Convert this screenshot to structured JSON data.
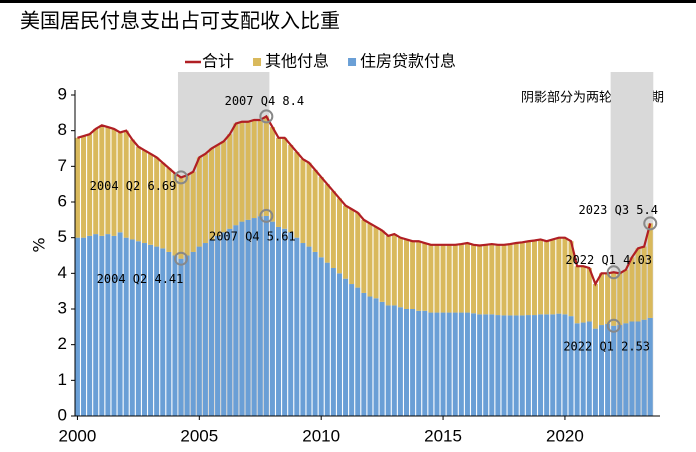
{
  "chart_data": {
    "type": "bar",
    "title": "美国居民付息支出占可支配收入比重",
    "ylabel": "%",
    "note": "阴影部分为两轮加息周期",
    "x": [
      2000,
      2000.25,
      2000.5,
      2000.75,
      2001,
      2001.25,
      2001.5,
      2001.75,
      2002,
      2002.25,
      2002.5,
      2002.75,
      2003,
      2003.25,
      2003.5,
      2003.75,
      2004,
      2004.25,
      2004.5,
      2004.75,
      2005,
      2005.25,
      2005.5,
      2005.75,
      2006,
      2006.25,
      2006.5,
      2006.75,
      2007,
      2007.25,
      2007.5,
      2007.75,
      2008,
      2008.25,
      2008.5,
      2008.75,
      2009,
      2009.25,
      2009.5,
      2009.75,
      2010,
      2010.25,
      2010.5,
      2010.75,
      2011,
      2011.25,
      2011.5,
      2011.75,
      2012,
      2012.25,
      2012.5,
      2012.75,
      2013,
      2013.25,
      2013.5,
      2013.75,
      2014,
      2014.25,
      2014.5,
      2014.75,
      2015,
      2015.25,
      2015.5,
      2015.75,
      2016,
      2016.25,
      2016.5,
      2016.75,
      2017,
      2017.25,
      2017.5,
      2017.75,
      2018,
      2018.25,
      2018.5,
      2018.75,
      2019,
      2019.25,
      2019.5,
      2019.75,
      2020,
      2020.25,
      2020.5,
      2020.75,
      2021,
      2021.25,
      2021.5,
      2021.75,
      2022,
      2022.25,
      2022.5,
      2022.75,
      2023,
      2023.25,
      2023.5
    ],
    "series": [
      {
        "name": "合计",
        "type": "line",
        "color": "#b01f24",
        "values": [
          7.8,
          7.85,
          7.9,
          8.05,
          8.15,
          8.1,
          8.05,
          7.95,
          8.0,
          7.75,
          7.55,
          7.45,
          7.35,
          7.25,
          7.1,
          6.95,
          6.8,
          6.69,
          6.75,
          6.85,
          7.25,
          7.35,
          7.5,
          7.6,
          7.7,
          7.9,
          8.2,
          8.25,
          8.25,
          8.3,
          8.3,
          8.4,
          8.1,
          7.8,
          7.8,
          7.6,
          7.4,
          7.2,
          7.1,
          6.9,
          6.7,
          6.5,
          6.3,
          6.1,
          5.9,
          5.8,
          5.7,
          5.5,
          5.4,
          5.3,
          5.2,
          5.05,
          5.1,
          5.0,
          4.95,
          4.9,
          4.9,
          4.85,
          4.8,
          4.8,
          4.8,
          4.8,
          4.8,
          4.82,
          4.85,
          4.8,
          4.78,
          4.8,
          4.82,
          4.8,
          4.8,
          4.82,
          4.85,
          4.87,
          4.9,
          4.92,
          4.95,
          4.9,
          4.95,
          5.0,
          5.0,
          4.9,
          4.2,
          4.2,
          4.15,
          3.7,
          4.0,
          4.0,
          4.03,
          4.0,
          4.1,
          4.45,
          4.7,
          4.75,
          5.4
        ]
      },
      {
        "name": "其他付息",
        "type": "bar",
        "color": "#d9b95c",
        "values": [
          2.8,
          2.85,
          2.85,
          2.95,
          3.1,
          3.0,
          3.0,
          2.8,
          3.0,
          2.8,
          2.65,
          2.6,
          2.55,
          2.5,
          2.4,
          2.35,
          2.3,
          2.28,
          2.25,
          2.25,
          2.5,
          2.5,
          2.55,
          2.55,
          2.55,
          2.65,
          2.85,
          2.8,
          2.75,
          2.75,
          2.7,
          2.79,
          2.65,
          2.5,
          2.55,
          2.45,
          2.4,
          2.35,
          2.35,
          2.3,
          2.25,
          2.2,
          2.15,
          2.1,
          2.05,
          2.1,
          2.1,
          2.05,
          2.05,
          2.0,
          2.0,
          1.95,
          2.0,
          1.95,
          1.95,
          1.9,
          1.95,
          1.9,
          1.9,
          1.9,
          1.9,
          1.9,
          1.9,
          1.92,
          1.95,
          1.92,
          1.93,
          1.95,
          1.97,
          1.97,
          1.98,
          2.0,
          2.03,
          2.05,
          2.07,
          2.09,
          2.1,
          2.05,
          2.1,
          2.13,
          2.15,
          2.1,
          1.6,
          1.58,
          1.5,
          1.25,
          1.45,
          1.42,
          1.5,
          1.45,
          1.5,
          1.8,
          2.05,
          2.05,
          2.65
        ]
      },
      {
        "name": "住房贷款付息",
        "type": "bar",
        "color": "#6a9fd6",
        "values": [
          5.0,
          5.0,
          5.05,
          5.1,
          5.05,
          5.1,
          5.05,
          5.15,
          5.0,
          4.95,
          4.9,
          4.85,
          4.8,
          4.75,
          4.7,
          4.6,
          4.5,
          4.41,
          4.5,
          4.6,
          4.75,
          4.85,
          4.95,
          5.05,
          5.15,
          5.25,
          5.35,
          5.45,
          5.5,
          5.55,
          5.6,
          5.61,
          5.45,
          5.3,
          5.25,
          5.15,
          5.0,
          4.85,
          4.75,
          4.6,
          4.45,
          4.3,
          4.15,
          4.0,
          3.85,
          3.7,
          3.6,
          3.45,
          3.35,
          3.3,
          3.2,
          3.1,
          3.1,
          3.05,
          3.0,
          3.0,
          2.95,
          2.95,
          2.9,
          2.9,
          2.9,
          2.9,
          2.9,
          2.9,
          2.9,
          2.88,
          2.85,
          2.85,
          2.85,
          2.83,
          2.82,
          2.82,
          2.82,
          2.82,
          2.83,
          2.83,
          2.85,
          2.85,
          2.85,
          2.87,
          2.85,
          2.8,
          2.6,
          2.62,
          2.65,
          2.45,
          2.55,
          2.58,
          2.53,
          2.55,
          2.6,
          2.65,
          2.65,
          2.7,
          2.75
        ]
      }
    ],
    "shaded": [
      [
        2004.25,
        2007.75
      ],
      [
        2022,
        2023.5
      ]
    ],
    "shade_color": "#d9d9d9",
    "annotations": [
      {
        "text": "2004 Q2 6.69",
        "x": 2004.25,
        "y": 6.69
      },
      {
        "text": "2007 Q4 8.4",
        "x": 2007.75,
        "y": 8.4
      },
      {
        "text": "2004 Q2 4.41",
        "x": 2004.25,
        "y": 4.41
      },
      {
        "text": "2007 Q4 5.61",
        "x": 2007.75,
        "y": 5.61
      },
      {
        "text": "2023 Q3 5.4",
        "x": 2023.5,
        "y": 5.4
      },
      {
        "text": "2022 Q1 4.03",
        "x": 2022,
        "y": 4.03
      },
      {
        "text": "2022 Q1 2.53",
        "x": 2022,
        "y": 2.53
      }
    ],
    "xlim": [
      1999.9,
      2023.9
    ],
    "xticks": [
      2000,
      2005,
      2010,
      2015,
      2020
    ],
    "ylim": [
      0,
      9
    ],
    "yticks": [
      0,
      1,
      2,
      3,
      4,
      5,
      6,
      7,
      8,
      9
    ],
    "legend": "top"
  }
}
